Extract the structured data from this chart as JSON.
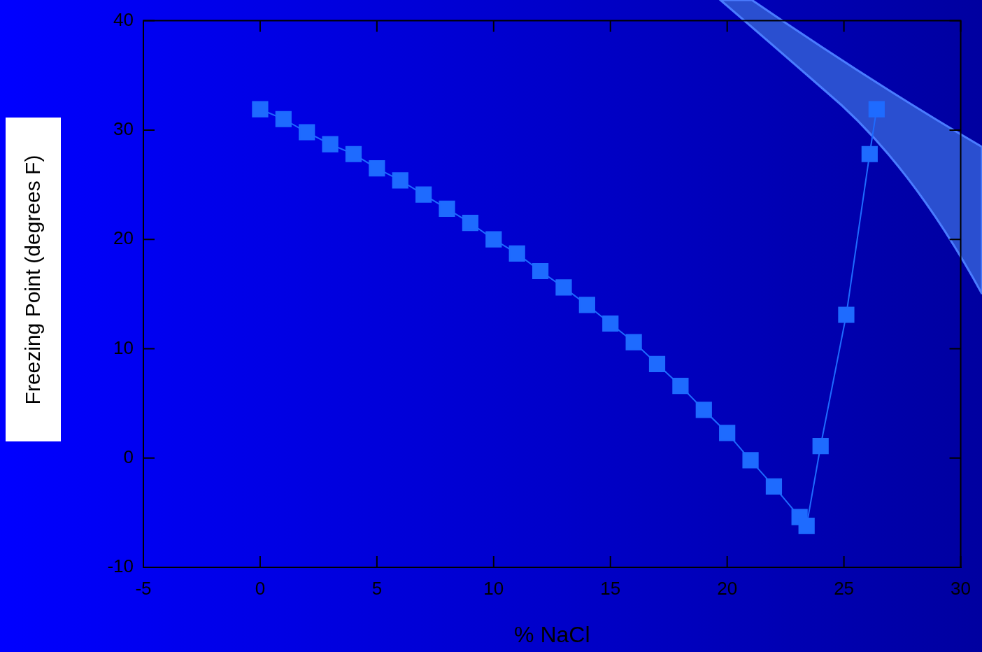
{
  "chart_data": {
    "type": "line",
    "xlabel": "% NaCl",
    "ylabel": "Freezing Point (degrees F)",
    "x": [
      0,
      1,
      2,
      3,
      4,
      5,
      6,
      7,
      8,
      9,
      10,
      11,
      12,
      13,
      14,
      15,
      16,
      17,
      18,
      19,
      20,
      21,
      22,
      23.1,
      23.4,
      24,
      25.1,
      26.1,
      26.4
    ],
    "series": [
      {
        "color": "#1e6bff",
        "values": [
          31.9,
          31.0,
          29.8,
          28.7,
          27.8,
          26.5,
          25.4,
          24.1,
          22.8,
          21.5,
          20.0,
          18.7,
          17.1,
          15.6,
          14.0,
          12.3,
          10.6,
          8.6,
          6.6,
          4.4,
          2.3,
          -0.2,
          -2.6,
          -5.4,
          -6.2,
          1.1,
          13.1,
          27.8,
          31.9
        ]
      }
    ],
    "xlim": [
      -5,
      30
    ],
    "xticks": [
      -5,
      0,
      5,
      10,
      15,
      20,
      25,
      30
    ],
    "ylim": [
      -10,
      40
    ],
    "yticks": [
      -10,
      0,
      10,
      20,
      30,
      40
    ],
    "grid": false,
    "legend": false,
    "marker": "square",
    "line_style": "solid"
  }
}
